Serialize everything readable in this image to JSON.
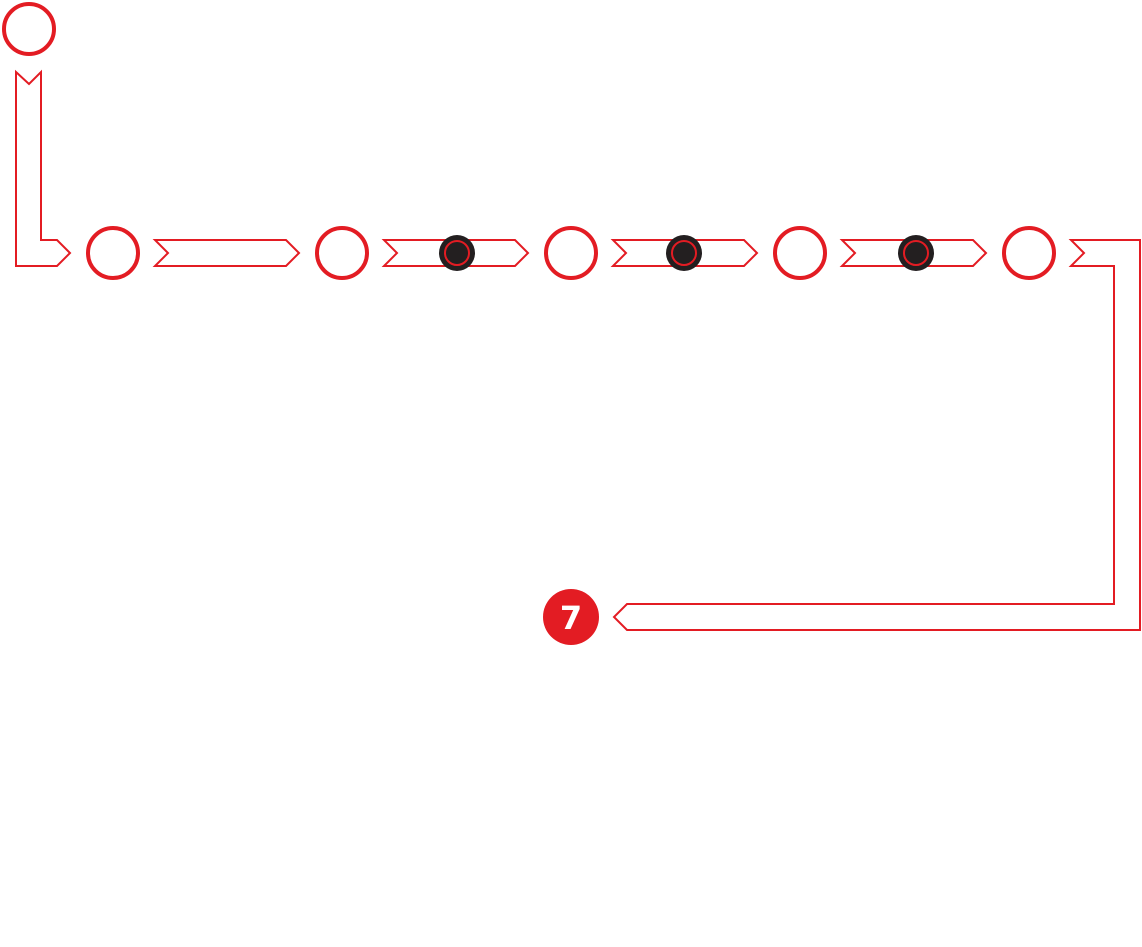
{
  "colors": {
    "accent": "#e31c23",
    "marker_fill": "#231f20",
    "background": "#ffffff",
    "label_text": "#ffffff"
  },
  "steps": [
    {
      "id": "step-1",
      "label": "",
      "filled": false
    },
    {
      "id": "step-2",
      "label": "",
      "filled": false
    },
    {
      "id": "step-3",
      "label": "",
      "filled": false
    },
    {
      "id": "step-4",
      "label": "",
      "filled": false
    },
    {
      "id": "step-5",
      "label": "",
      "filled": false
    },
    {
      "id": "step-6",
      "label": "",
      "filled": false
    },
    {
      "id": "step-7",
      "label": "7",
      "filled": true
    }
  ],
  "markers": [
    {
      "id": "marker-1",
      "between": [
        "step-3",
        "step-4"
      ]
    },
    {
      "id": "marker-2",
      "between": [
        "step-4",
        "step-5"
      ]
    },
    {
      "id": "marker-3",
      "between": [
        "step-5",
        "step-6"
      ]
    }
  ]
}
